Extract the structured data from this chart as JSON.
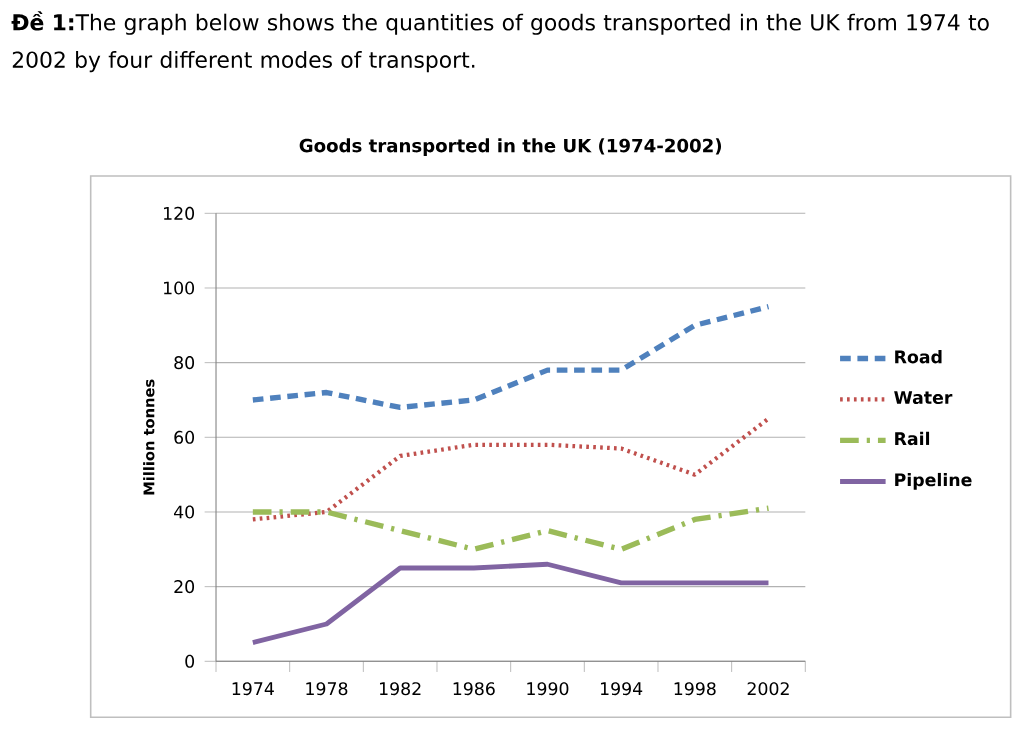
{
  "chart_data": {
    "type": "line",
    "title": "Goods transported in the UK (1974-2002)",
    "annotations": [
      "**Đề 1:**The graph below shows the quantities of goods transported in the UK from 1974 to 2002 by four different modes of transport."
    ],
    "ylabel": "Million tonnes",
    "categories": [
      "1974",
      "1978",
      "1982",
      "1986",
      "1990",
      "1994",
      "1998",
      "2002"
    ],
    "series": [
      {
        "name": "Road",
        "color": "#4f81bd",
        "line_style": "dashed",
        "values": [
          70,
          72,
          68,
          70,
          78,
          78,
          90,
          95
        ]
      },
      {
        "name": "Water",
        "color": "#c0504d",
        "line_style": "dotted",
        "values": [
          38,
          40,
          55,
          58,
          58,
          57,
          50,
          65
        ]
      },
      {
        "name": "Rail",
        "color": "#9bbb59",
        "line_style": "dashdot",
        "values": [
          40,
          40,
          35,
          30,
          35,
          30,
          38,
          41
        ]
      },
      {
        "name": "Pipeline",
        "color": "#8064a2",
        "line_style": "solid",
        "values": [
          5,
          10,
          25,
          25,
          26,
          21,
          21,
          21
        ]
      }
    ],
    "ylim": [
      0,
      120
    ],
    "yticks": [
      0,
      20,
      40,
      60,
      80,
      100,
      120
    ],
    "grid": "y",
    "legend": "right",
    "marker": "none"
  }
}
